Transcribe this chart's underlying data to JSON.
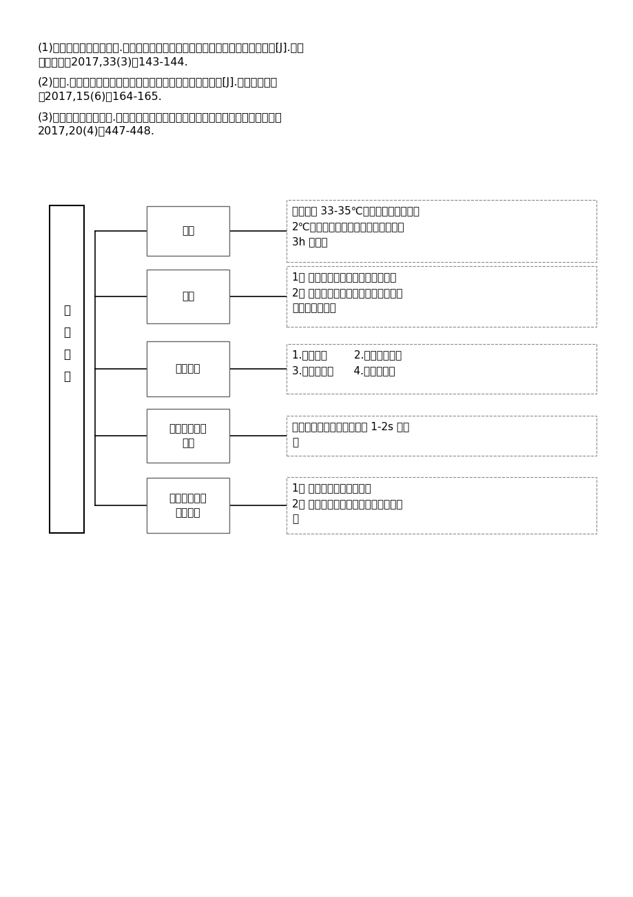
{
  "bg_color": "#ffffff",
  "text_color": "#000000",
  "ref1_line1": "(1)姚静，誸相姣，李齐波.综合护理干预措施对断指再植小切口放血患者的影响[J].中国",
  "ref1_line2": "社区医师，2017,33(3)：143-144.",
  "ref2_line1": "(2)吕魅.对行断指再植手术后的患者实施循证护理的效果分析[J].当代医药论丛",
  "ref2_line2": "，2017,15(6)：164-165.",
  "ref3_line1": "(3)肖思顺，雷青，魏平.断指再植术后发生血管危象的因素及处理临床骨科杂志，",
  "ref3_line2": "2017,20(4)：447-448.",
  "main_label": "观\n察\n指\n南",
  "nodes": [
    "温度",
    "颜色",
    "肿胀程度",
    "毛细血管充盈\n时间",
    "毛细血管充盈\n时间观察"
  ],
  "desc1_bold": "33-35",
  "desc1_bold2": "1-2s",
  "descriptions": [
    "温度应在 33-35℃，与健侧相比温差在\n2℃以内，手术结束时皮温较低，通常\n3h 内恢复",
    "1． 皮肤苍白，说明动脉痴戲或栓塞\n2． 皮肤出现散在性性瘀点，多为静脉\n部分或早期栓塞",
    "1.轻度肿胀        2.肿胀伴有皮纹\n3.肿胀无皮纹      4.肿胀有水泡",
    "指压皮肤后毛细血管充盈在 1-2s 内恢\n复",
    "1． 动脉栓塞时，反流消失\n2． 静脉栓塞时早期反流增快，晚期消\n失"
  ]
}
